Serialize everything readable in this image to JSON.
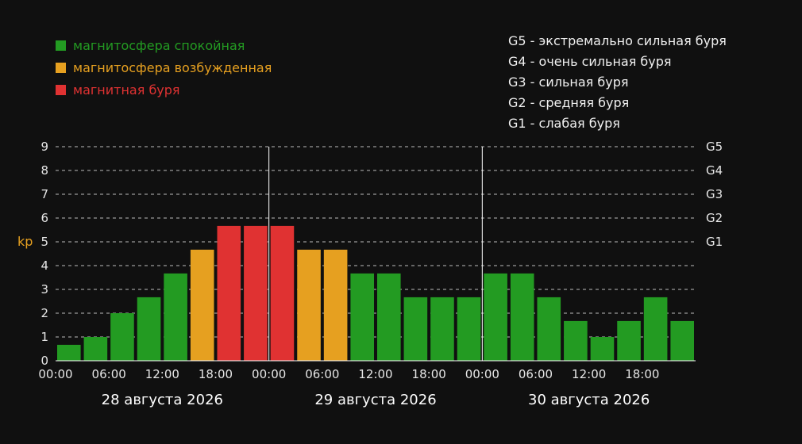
{
  "colors": {
    "background": "#101010",
    "quiet": "#239b22",
    "disturbed": "#e6a020",
    "storm": "#e03232",
    "text": "#e6e6e6",
    "ylabel": "#e6a020",
    "grid": "#bbbbbb"
  },
  "legend": {
    "quiet": "магнитосфера спокойная",
    "disturbed": "магнитосфера возбужденная",
    "storm": "магнитная буря",
    "levels": [
      "G5 - экстремально сильная буря",
      "G4 - очень сильная буря",
      "G3 - сильная буря",
      "G2 - средняя буря",
      "G1 - слабая буря"
    ]
  },
  "chart_data": {
    "type": "bar",
    "ylabel": "kp",
    "ylim": [
      0,
      9
    ],
    "yticks": [
      "0",
      "1",
      "2",
      "3",
      "4",
      "5",
      "6",
      "7",
      "8",
      "9"
    ],
    "right_levels": [
      {
        "label": "G5",
        "value": 9
      },
      {
        "label": "G4",
        "value": 8
      },
      {
        "label": "G3",
        "value": 7
      },
      {
        "label": "G2",
        "value": 6
      },
      {
        "label": "G1",
        "value": 5
      }
    ],
    "days": [
      "28 августа 2026",
      "29 августа 2026",
      "30 августа 2026"
    ],
    "xticks": [
      "00:00",
      "06:00",
      "12:00",
      "18:00",
      "00:00",
      "06:00",
      "12:00",
      "18:00",
      "00:00",
      "06:00",
      "12:00",
      "18:00"
    ],
    "values": [
      0.67,
      1,
      2,
      2.67,
      3.67,
      4.67,
      5.67,
      5.67,
      5.67,
      4.67,
      4.67,
      3.67,
      3.67,
      2.67,
      2.67,
      2.67,
      3.67,
      3.67,
      2.67,
      1.67,
      1,
      1.67,
      2.67,
      1.67
    ],
    "status": [
      "quiet",
      "quiet",
      "quiet",
      "quiet",
      "quiet",
      "disturbed",
      "storm",
      "storm",
      "storm",
      "disturbed",
      "disturbed",
      "quiet",
      "quiet",
      "quiet",
      "quiet",
      "quiet",
      "quiet",
      "quiet",
      "quiet",
      "quiet",
      "quiet",
      "quiet",
      "quiet",
      "quiet"
    ],
    "grid": true
  }
}
